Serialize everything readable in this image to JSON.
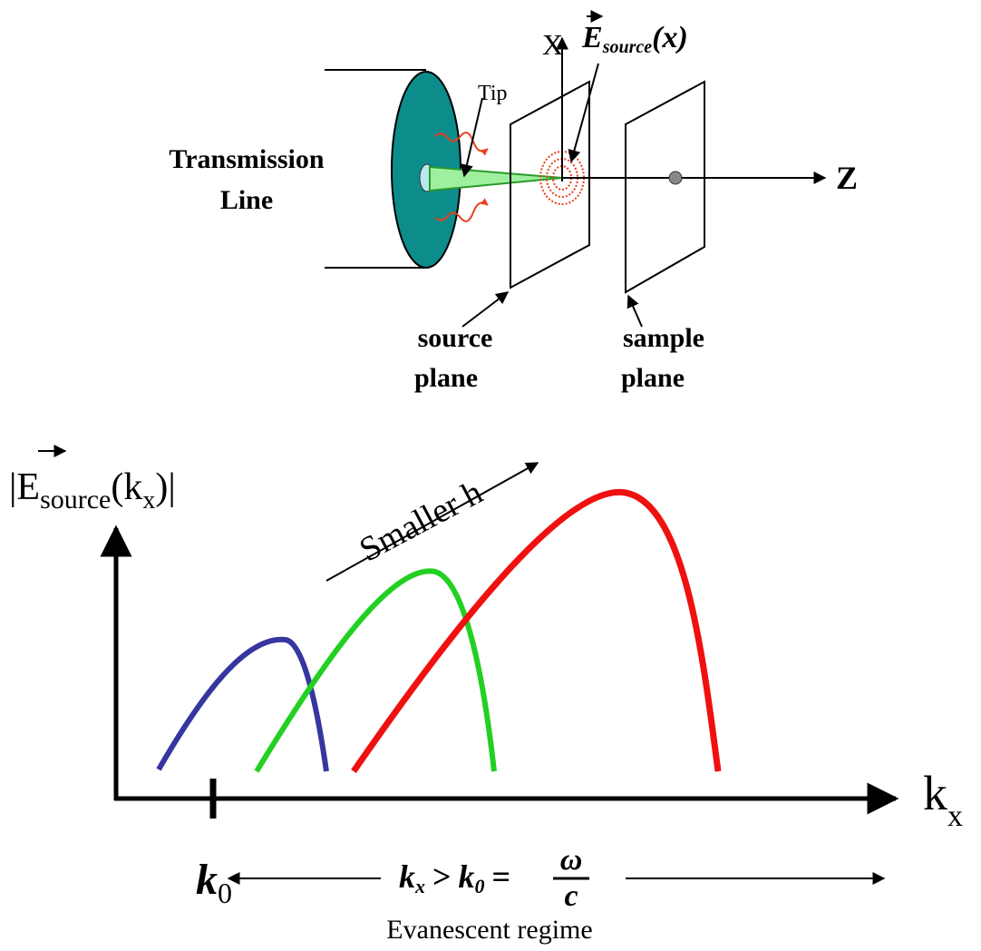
{
  "top_diagram": {
    "transmission_line_label": [
      "Transmission",
      "Line"
    ],
    "tip_label": "Tip",
    "x_axis_label": "X",
    "z_axis_label": "Z",
    "field_label": {
      "symbol": "E",
      "subscript": "source",
      "argument": "(x)"
    },
    "source_plane_label": [
      "source",
      "plane"
    ],
    "sample_plane_label": [
      "sample",
      "plane"
    ]
  },
  "bottom_diagram": {
    "y_axis_label": {
      "open": "|",
      "symbol": "E",
      "subscript": "source",
      "paren_open": "(k",
      "argument_subscript": "x",
      "close": ")|"
    },
    "trend_label": "Smaller h",
    "x_axis_label": {
      "symbol": "k",
      "subscript": "x"
    },
    "tick_label": {
      "symbol": "k",
      "subscript": "0"
    },
    "condition": {
      "left": "k",
      "left_subscript": "x",
      "greater": ">",
      "middle": "k",
      "middle_subscript": "0",
      "equals": "=",
      "numerator": "ω",
      "denominator": "c"
    },
    "regime_label": "Evanescent regime"
  }
}
